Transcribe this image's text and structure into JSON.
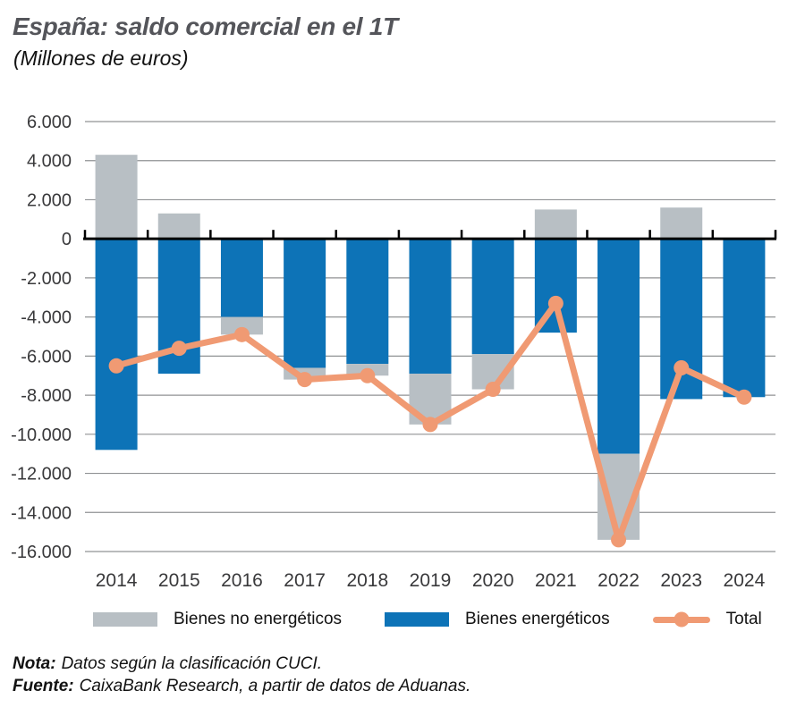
{
  "title": "España: saldo comercial en el 1T",
  "subtitle": "(Millones de euros)",
  "colors": {
    "non_energy_bar": "#b8bfc4",
    "energy_bar": "#0d73b7",
    "total_line": "#f09a73",
    "title_text": "#54555a",
    "axis_text": "#39393b",
    "gridline": "#909294",
    "zero_axis": "#000000"
  },
  "legend": [
    {
      "label": "Bienes no energéticos",
      "type": "bar",
      "color": "#b8bfc4"
    },
    {
      "label": "Bienes energéticos",
      "type": "bar",
      "color": "#0d73b7"
    },
    {
      "label": "Total",
      "type": "line",
      "color": "#f09a73"
    }
  ],
  "notes": [
    {
      "prefix": "Nota:",
      "text": "Datos según la clasificación CUCI."
    },
    {
      "prefix": "Fuente:",
      "text": "CaixaBank Research, a partir de datos de Aduanas."
    }
  ],
  "chart_data": {
    "type": "bar",
    "subtype": "stacked-bars-with-line",
    "categories": [
      "2014",
      "2015",
      "2016",
      "2017",
      "2018",
      "2019",
      "2020",
      "2021",
      "2022",
      "2023",
      "2024"
    ],
    "series": [
      {
        "name": "Bienes no energéticos",
        "type": "bar",
        "color": "#b8bfc4",
        "values": [
          4300,
          1300,
          -900,
          -600,
          -600,
          -2600,
          -1800,
          1500,
          -4400,
          1600,
          0
        ]
      },
      {
        "name": "Bienes energéticos",
        "type": "bar",
        "color": "#0d73b7",
        "values": [
          -10800,
          -6900,
          -4000,
          -6600,
          -6400,
          -6900,
          -5900,
          -4800,
          -11000,
          -8200,
          -8100
        ]
      },
      {
        "name": "Total",
        "type": "line",
        "color": "#f09a73",
        "values": [
          -6500,
          -5600,
          -4900,
          -7200,
          -7000,
          -9500,
          -7700,
          -3300,
          -15400,
          -6600,
          -8100
        ]
      }
    ],
    "ylabel": "Millones de euros",
    "xlabel": "",
    "ylim": [
      -16000,
      6000
    ],
    "ytick_step": 2000,
    "ytick_labels": [
      "6.000",
      "4.000",
      "2.000",
      "0",
      "-2.000",
      "-4.000",
      "-6.000",
      "-8.000",
      "-10.000",
      "-12.000",
      "-14.000",
      "-16.000"
    ],
    "grid": true,
    "legend_position": "bottom"
  }
}
